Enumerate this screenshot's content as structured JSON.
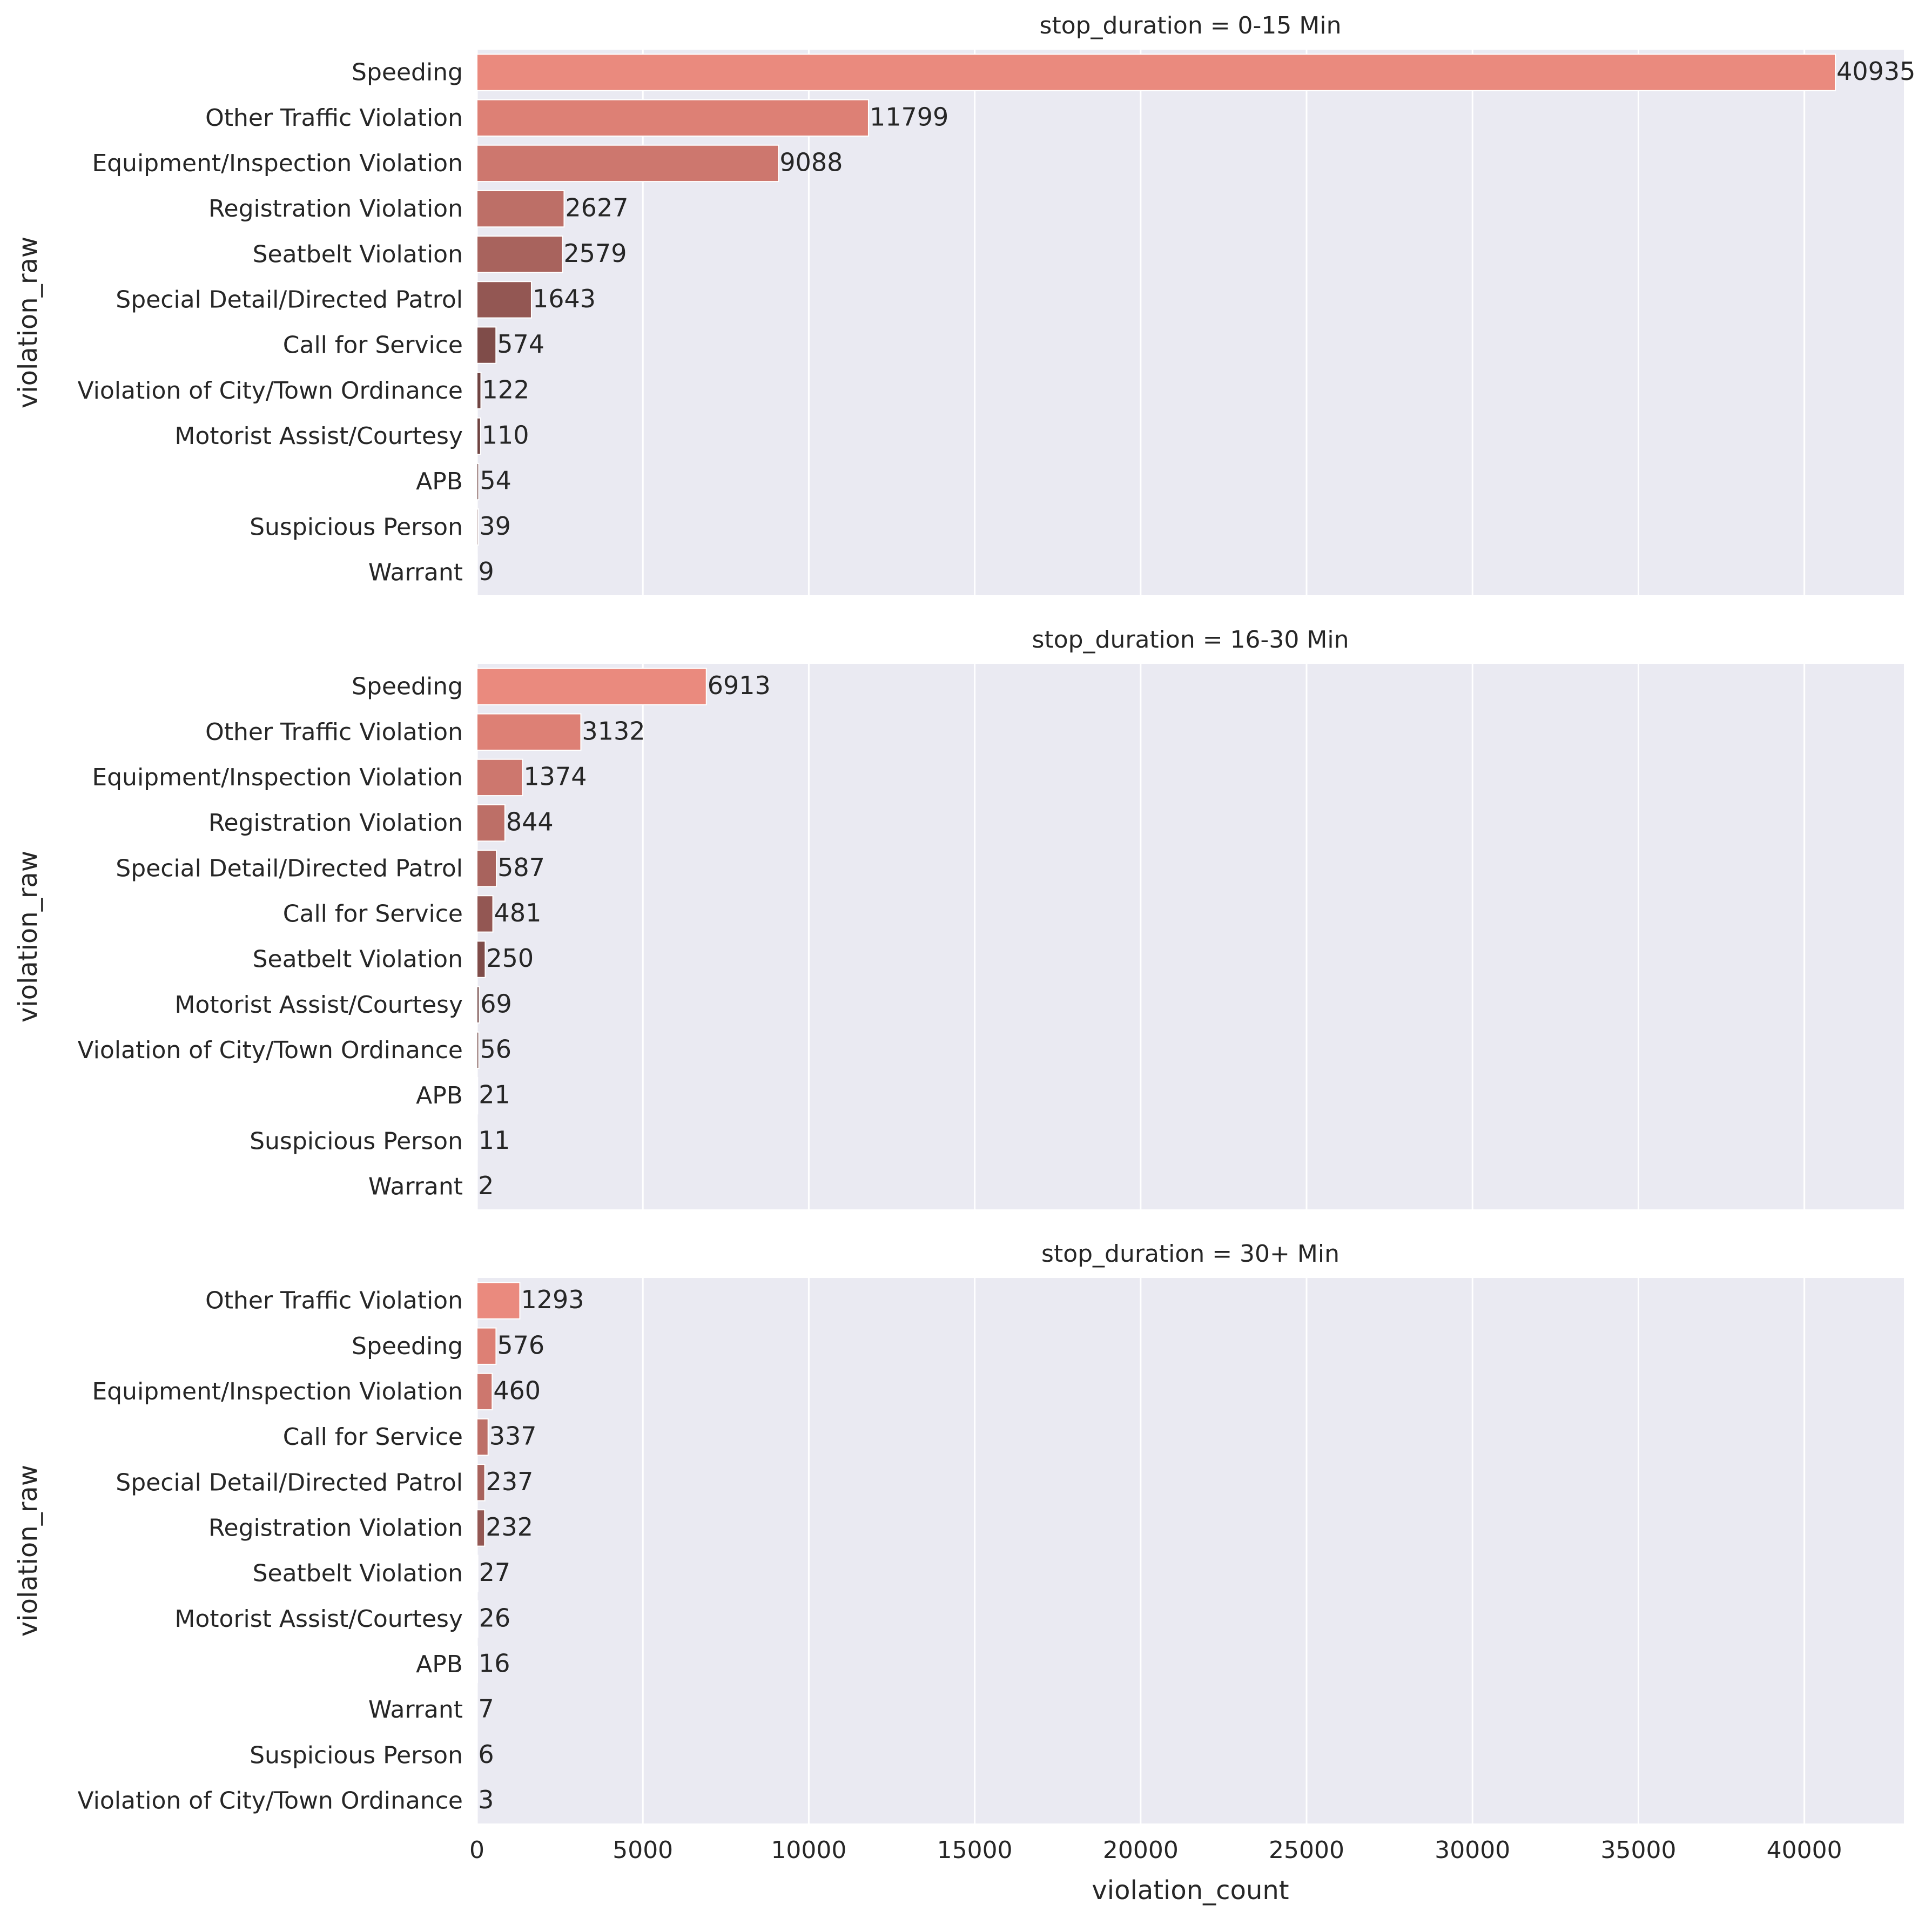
{
  "chart_data": {
    "type": "bar",
    "orientation": "horizontal",
    "facet": "stop_duration",
    "xlabel": "violation_count",
    "ylabel": "violation_raw",
    "xlim": [
      0,
      43000
    ],
    "xticks": [
      0,
      5000,
      10000,
      15000,
      20000,
      25000,
      30000,
      35000,
      40000
    ],
    "grid": true,
    "legend": "none",
    "colors": [
      "#ea8a7e",
      "#dd8075",
      "#cd776e",
      "#bd6f67",
      "#a8635d",
      "#935753",
      "#7f4c49",
      "#6f4341",
      "#6f4341",
      "#6f4341",
      "#6f4341",
      "#6f4341"
    ],
    "panels": [
      {
        "title": "stop_duration = 0-15 Min",
        "categories": [
          "Speeding",
          "Other Traffic Violation",
          "Equipment/Inspection Violation",
          "Registration Violation",
          "Seatbelt Violation",
          "Special Detail/Directed Patrol",
          "Call for Service",
          "Violation of City/Town Ordinance",
          "Motorist Assist/Courtesy",
          "APB",
          "Suspicious Person",
          "Warrant"
        ],
        "values": [
          40935,
          11799,
          9088,
          2627,
          2579,
          1643,
          574,
          122,
          110,
          54,
          39,
          9
        ]
      },
      {
        "title": "stop_duration = 16-30 Min",
        "categories": [
          "Speeding",
          "Other Traffic Violation",
          "Equipment/Inspection Violation",
          "Registration Violation",
          "Special Detail/Directed Patrol",
          "Call for Service",
          "Seatbelt Violation",
          "Motorist Assist/Courtesy",
          "Violation of City/Town Ordinance",
          "APB",
          "Suspicious Person",
          "Warrant"
        ],
        "values": [
          6913,
          3132,
          1374,
          844,
          587,
          481,
          250,
          69,
          56,
          21,
          11,
          2
        ]
      },
      {
        "title": "stop_duration = 30+ Min",
        "categories": [
          "Other Traffic Violation",
          "Speeding",
          "Equipment/Inspection Violation",
          "Call for Service",
          "Special Detail/Directed Patrol",
          "Registration Violation",
          "Seatbelt Violation",
          "Motorist Assist/Courtesy",
          "APB",
          "Warrant",
          "Suspicious Person",
          "Violation of City/Town Ordinance"
        ],
        "values": [
          1293,
          576,
          460,
          337,
          237,
          232,
          27,
          26,
          16,
          7,
          6,
          3
        ]
      }
    ]
  }
}
